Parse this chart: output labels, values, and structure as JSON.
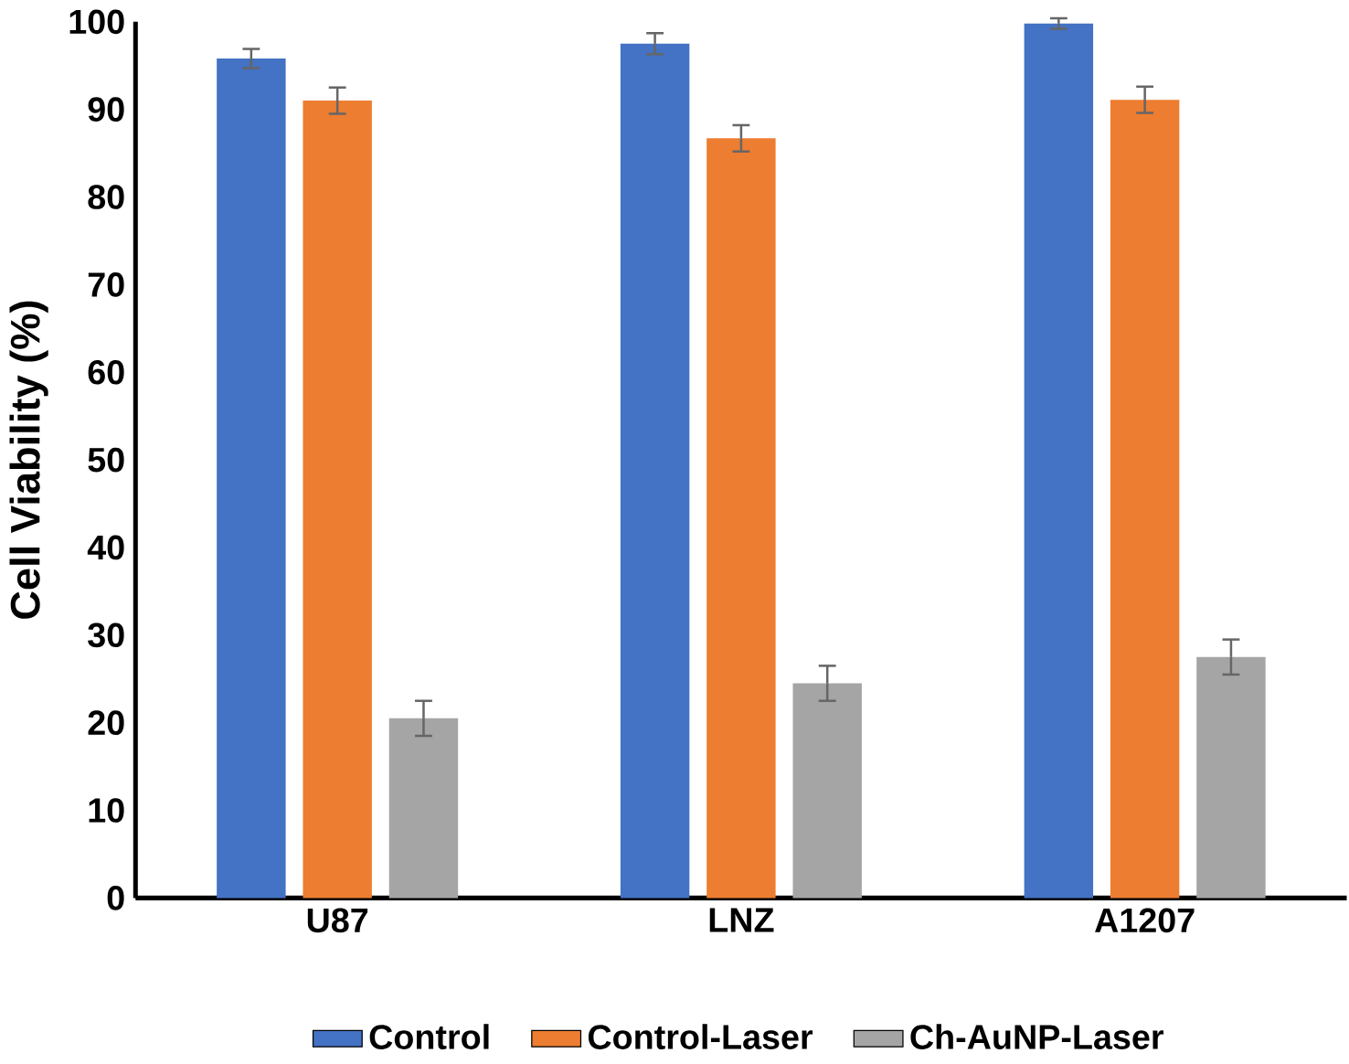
{
  "chart_data": {
    "type": "bar",
    "ylabel": "Cell Viability (%)",
    "categories": [
      "U87",
      "LNZ",
      "A1207"
    ],
    "series": [
      {
        "name": "Control",
        "color": "#4472c4",
        "values": [
          95.8,
          97.5,
          99.8
        ],
        "errors": [
          1.1,
          1.2,
          0.6
        ]
      },
      {
        "name": "Control-Laser",
        "color": "#ed7d31",
        "values": [
          91,
          86.7,
          91.1
        ],
        "errors": [
          1.5,
          1.5,
          1.5
        ]
      },
      {
        "name": "Ch-AuNP-Laser",
        "color": "#a5a5a5",
        "values": [
          20.5,
          24.5,
          27.5
        ],
        "errors": [
          2,
          2,
          2
        ]
      }
    ],
    "ylim": [
      0,
      100
    ],
    "yticks": [
      0,
      10,
      20,
      30,
      40,
      50,
      60,
      70,
      80,
      90,
      100
    ],
    "grid": false,
    "legend": "bottom"
  }
}
